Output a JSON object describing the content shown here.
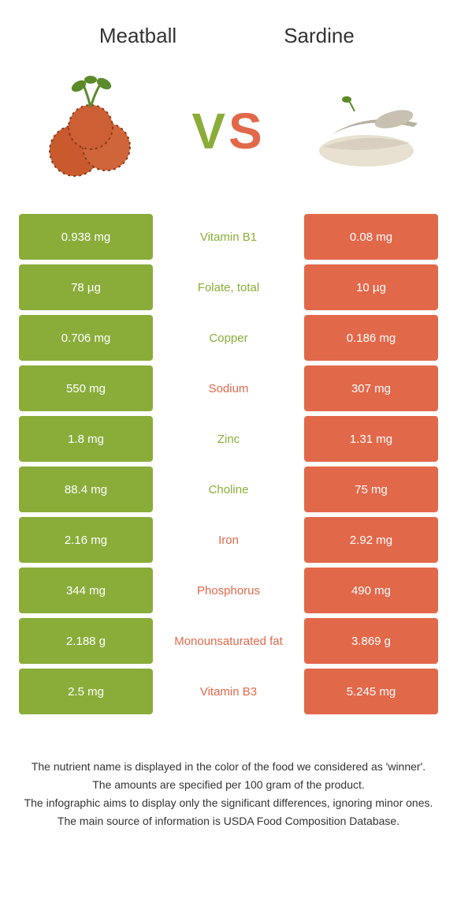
{
  "colors": {
    "green": "#8aad3a",
    "orange": "#e2684a",
    "text": "#333333"
  },
  "header": {
    "left_title": "Meatball",
    "right_title": "Sardine"
  },
  "vs": {
    "v": "V",
    "s": "S"
  },
  "rows": [
    {
      "left": "0.938 mg",
      "label": "Vitamin B1",
      "right": "0.08 mg",
      "winner": "left"
    },
    {
      "left": "78 µg",
      "label": "Folate, total",
      "right": "10 µg",
      "winner": "left"
    },
    {
      "left": "0.706 mg",
      "label": "Copper",
      "right": "0.186 mg",
      "winner": "left"
    },
    {
      "left": "550 mg",
      "label": "Sodium",
      "right": "307 mg",
      "winner": "right"
    },
    {
      "left": "1.8 mg",
      "label": "Zinc",
      "right": "1.31 mg",
      "winner": "left"
    },
    {
      "left": "88.4 mg",
      "label": "Choline",
      "right": "75 mg",
      "winner": "left"
    },
    {
      "left": "2.16 mg",
      "label": "Iron",
      "right": "2.92 mg",
      "winner": "right"
    },
    {
      "left": "344 mg",
      "label": "Phosphorus",
      "right": "490 mg",
      "winner": "right"
    },
    {
      "left": "2.188 g",
      "label": "Monounsaturated fat",
      "right": "3.869 g",
      "winner": "right"
    },
    {
      "left": "2.5 mg",
      "label": "Vitamin B3",
      "right": "5.245 mg",
      "winner": "right"
    }
  ],
  "footer": {
    "line1": "The nutrient name is displayed in the color of the food we considered as 'winner'.",
    "line2": "The amounts are specified per 100 gram of the product.",
    "line3": "The infographic aims to display only the significant differences, ignoring minor ones.",
    "line4": "The main source of information is USDA Food Composition Database."
  }
}
